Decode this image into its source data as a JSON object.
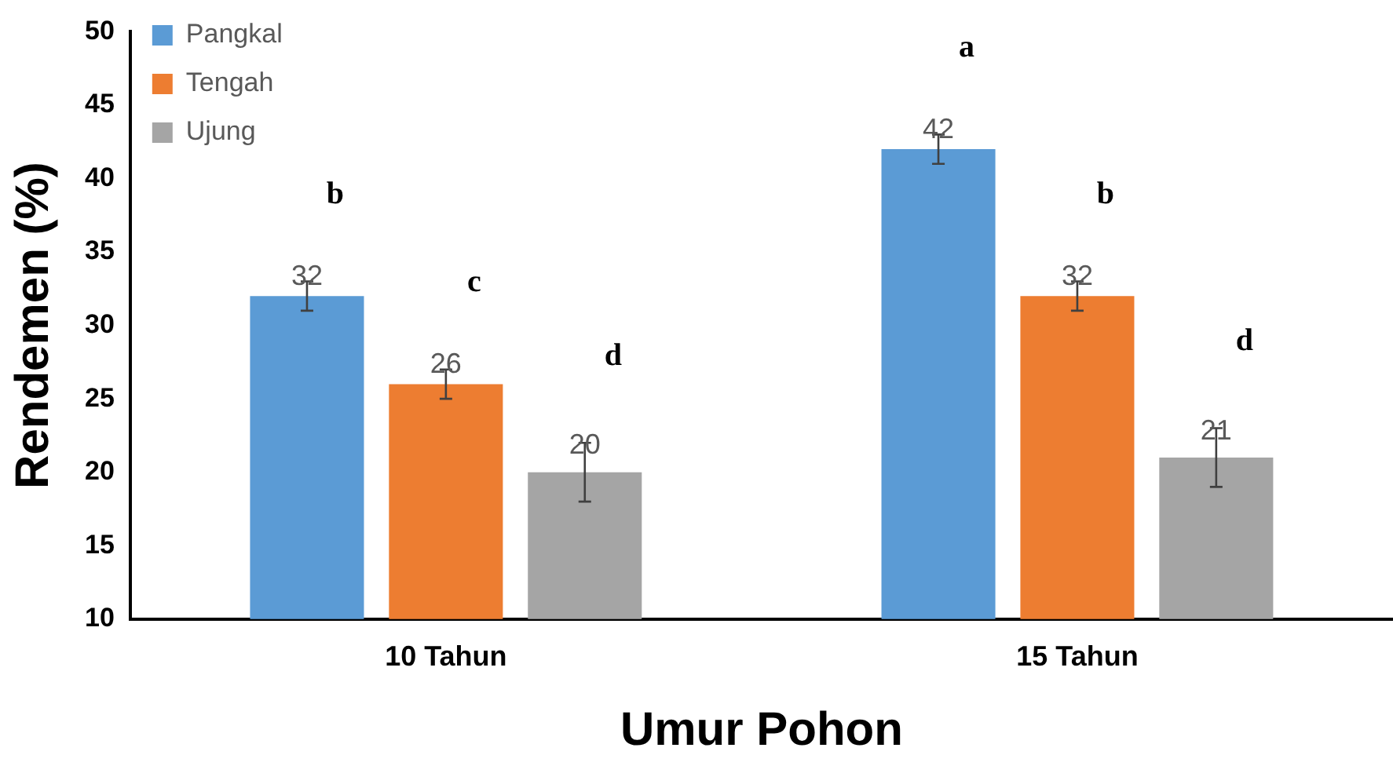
{
  "chart_data": {
    "type": "bar",
    "xlabel": "Umur Pohon",
    "ylabel": "Rendemen (%)",
    "categories": [
      "10 Tahun",
      "15 Tahun"
    ],
    "series": [
      {
        "name": "Pangkal",
        "color": "#5b9bd5",
        "values": [
          32,
          42
        ],
        "errors": [
          1,
          1
        ]
      },
      {
        "name": "Tengah",
        "color": "#ed7d31",
        "values": [
          26,
          32
        ],
        "errors": [
          1,
          1
        ]
      },
      {
        "name": "Ujung",
        "color": "#a5a5a5",
        "values": [
          20,
          21
        ],
        "errors": [
          2,
          2
        ]
      }
    ],
    "ylim": [
      10,
      50
    ],
    "yticks": [
      10,
      15,
      20,
      25,
      30,
      35,
      40,
      45,
      50
    ],
    "grid": false,
    "legend": "top",
    "data_labels": true,
    "annotations": [
      "b",
      "c",
      "d",
      "a",
      "b",
      "d"
    ]
  }
}
